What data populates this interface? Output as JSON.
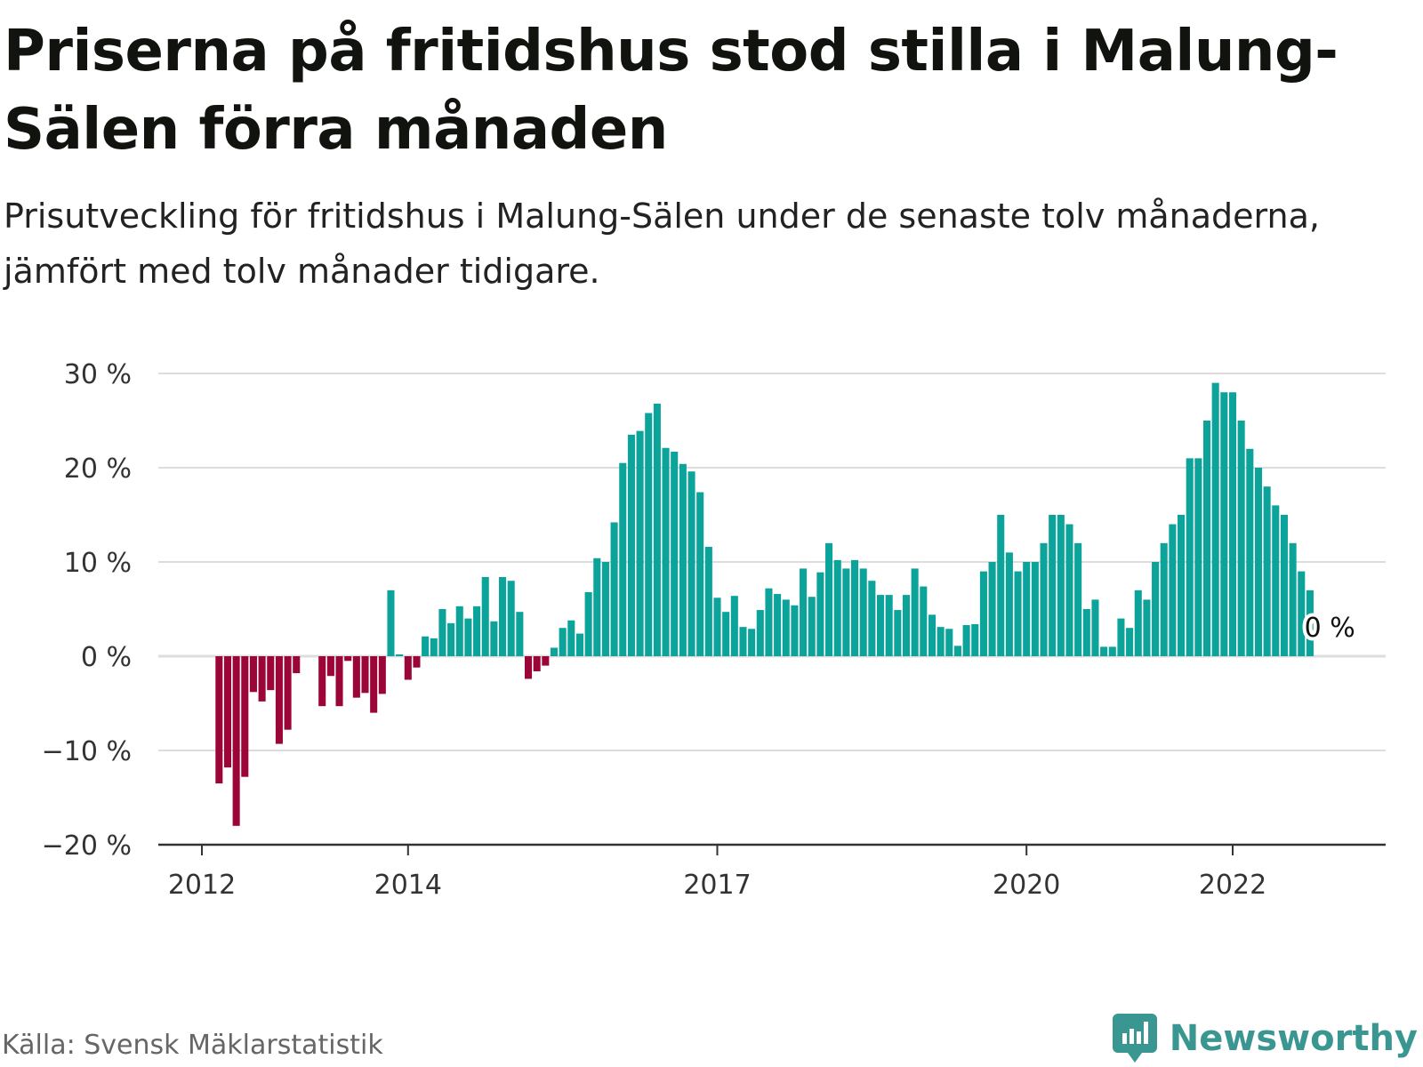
{
  "title": "Priserna på fritidshus stod stilla i Malung-Sälen förra månaden",
  "subtitle": "Prisutveckling för fritidshus i Malung-Sälen under de senaste tolv månaderna, jämfört med tolv månader tidigare.",
  "source": "Källa: Svensk Mäklarstatistik",
  "brand": {
    "name": "Newsworthy",
    "icon": "newsworthy-logo-icon",
    "color": "#3a9690"
  },
  "colors": {
    "positive": "#0ba39a",
    "negative": "#9c0538",
    "grid": "#dddddd",
    "axis": "#333333"
  },
  "chart_data": {
    "type": "bar",
    "title": "",
    "xlabel": "",
    "ylabel": "",
    "unit": "%",
    "ylim": [
      -20,
      30
    ],
    "y_ticks": [
      30,
      20,
      10,
      0,
      -10,
      -20
    ],
    "y_tick_labels": [
      "30 %",
      "20 %",
      "10 %",
      "0 %",
      "−10 %",
      "−20 %"
    ],
    "x_ticks": [
      "2012",
      "2014",
      "2017",
      "2020",
      "2022"
    ],
    "x_tick_dates": [
      "2012-01",
      "2014-01",
      "2017-01",
      "2020-01",
      "2022-01"
    ],
    "grid": true,
    "series_start": "2012-03",
    "frequency": "monthly",
    "last_value_label": "0 %",
    "values": [
      -13.5,
      -11.8,
      -18,
      -12.8,
      -3.8,
      -4.8,
      -3.6,
      -9.3,
      -7.8,
      -1.8,
      0,
      0,
      -5.3,
      -2.1,
      -5.3,
      -0.5,
      -4.4,
      -3.9,
      -6,
      -4,
      7,
      0.2,
      -2.5,
      -1.2,
      2.1,
      1.9,
      5,
      3.5,
      5.3,
      4,
      5.3,
      8.4,
      3.7,
      8.4,
      8,
      4.7,
      -2.4,
      -1.6,
      -1,
      0.9,
      3,
      3.8,
      2.4,
      6.8,
      10.4,
      10,
      14.2,
      20.5,
      23.5,
      23.9,
      25.8,
      26.8,
      22.1,
      21.7,
      20.4,
      19.6,
      17.4,
      11.6,
      6.2,
      4.7,
      6.4,
      3.1,
      2.9,
      4.9,
      7.2,
      6.6,
      6,
      5.4,
      9.3,
      6.3,
      8.9,
      12,
      10.2,
      9.3,
      10.2,
      9.3,
      8,
      6.5,
      6.5,
      4.9,
      6.5,
      9.3,
      7.4,
      4.4,
      3.1,
      2.9,
      1.1,
      3.3,
      3.4,
      9,
      10,
      15,
      11,
      9,
      10,
      10,
      12,
      15,
      15,
      14,
      12,
      5,
      6,
      1,
      1,
      4,
      3,
      7,
      6,
      10,
      12,
      14,
      15,
      21,
      21,
      25,
      29,
      28,
      28,
      25,
      22,
      20,
      18,
      16,
      15,
      12,
      9,
      7,
      0
    ]
  }
}
